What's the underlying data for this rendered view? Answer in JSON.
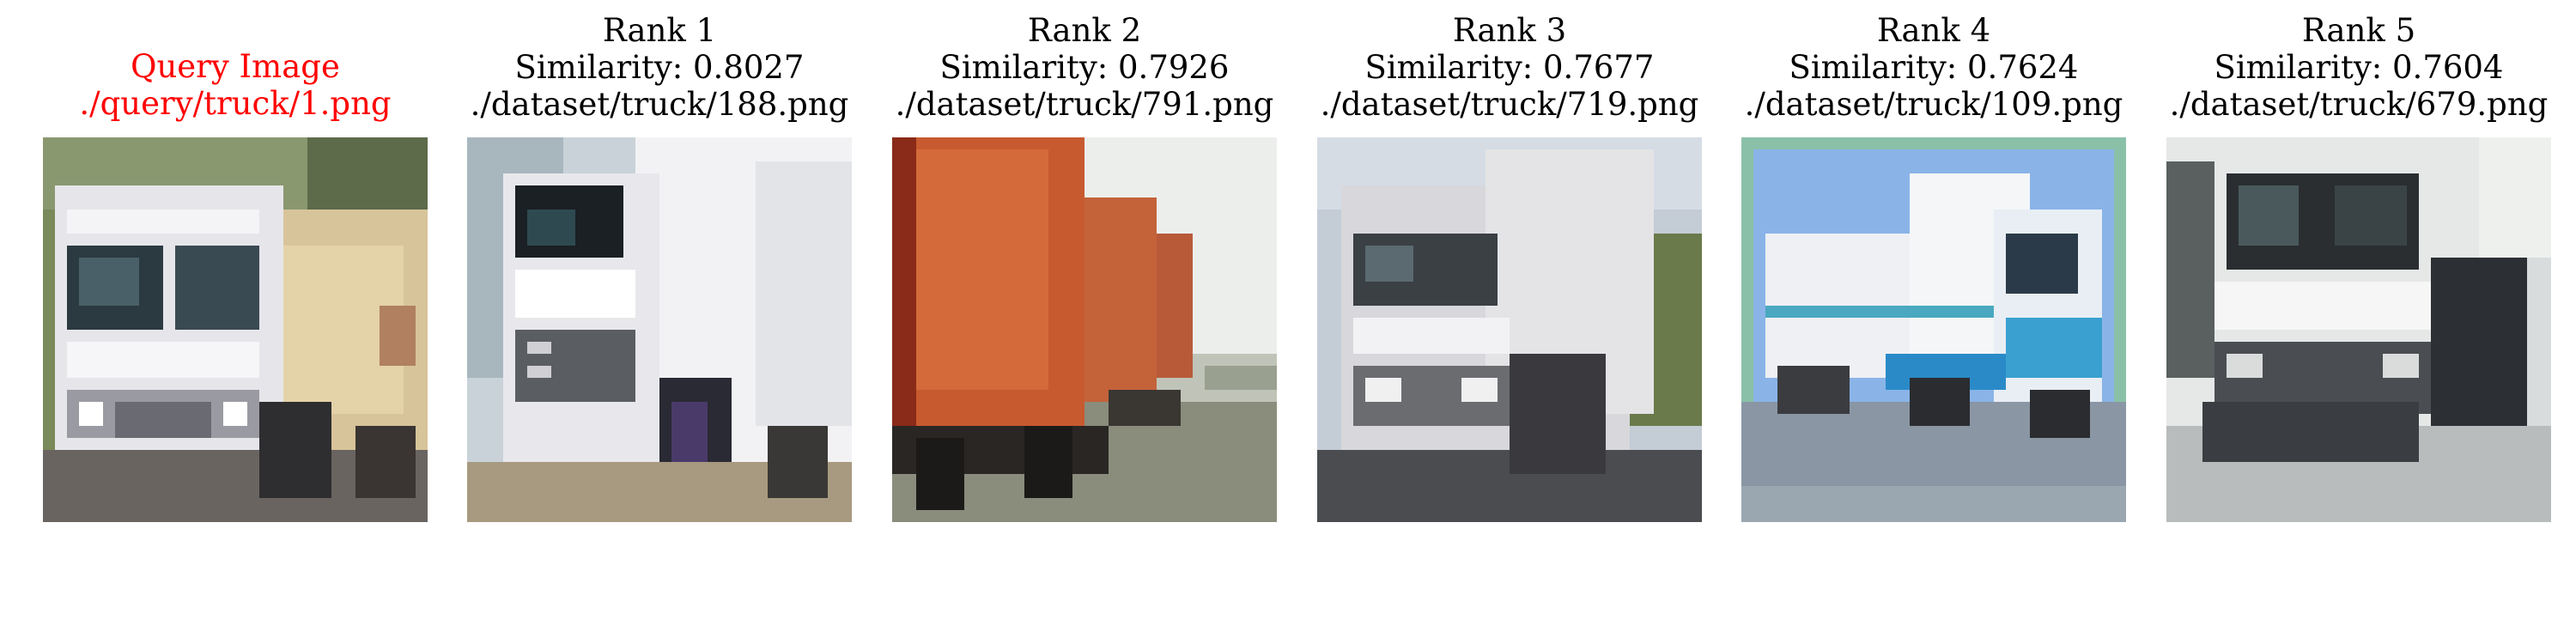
{
  "query": {
    "label": "Query Image",
    "path": "./query/truck/1.png",
    "picture": "white truck front view with beige dump body",
    "title_color": "#ff0000"
  },
  "results": [
    {
      "rank_label": "Rank 1",
      "similarity": "Similarity: 0.8027",
      "path": "./dataset/truck/188.png",
      "picture": "white cab-over truck, side-front view"
    },
    {
      "rank_label": "Rank 2",
      "similarity": "Similarity: 0.7926",
      "path": "./dataset/truck/791.png",
      "picture": "red cargo truck on road"
    },
    {
      "rank_label": "Rank 3",
      "similarity": "Similarity: 0.7677",
      "path": "./dataset/truck/719.png",
      "picture": "white truck front view on road"
    },
    {
      "rank_label": "Rank 4",
      "similarity": "Similarity: 0.7624",
      "path": "./dataset/truck/109.png",
      "picture": "white and blue semi truck under blue sky"
    },
    {
      "rank_label": "Rank 5",
      "similarity": "Similarity: 0.7604",
      "path": "./dataset/truck/679.png",
      "picture": "white truck cab close-up"
    }
  ]
}
